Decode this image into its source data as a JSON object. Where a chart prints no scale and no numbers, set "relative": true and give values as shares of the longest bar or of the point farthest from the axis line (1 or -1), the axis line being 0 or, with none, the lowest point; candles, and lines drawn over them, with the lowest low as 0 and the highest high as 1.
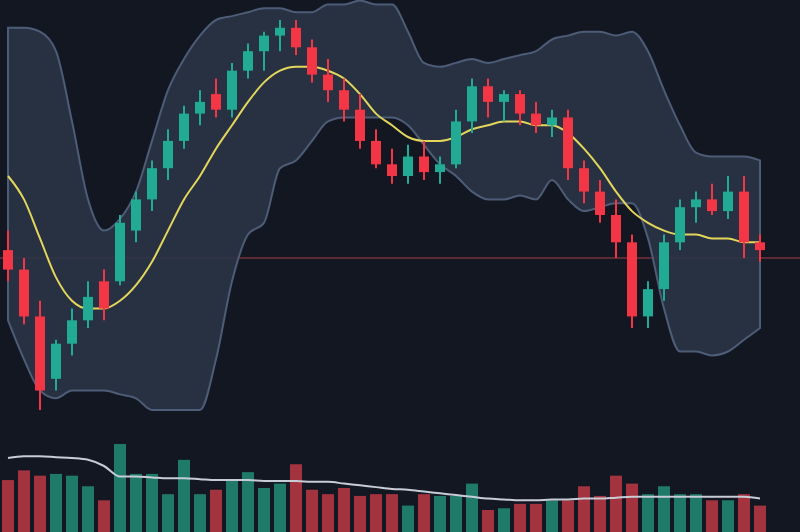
{
  "chart_data": [
    {
      "type": "candlestick",
      "relative": true,
      "categories": [
        null,
        null,
        null,
        null,
        null,
        null,
        null,
        null,
        null,
        null,
        null,
        null,
        null,
        null,
        null,
        null,
        null,
        null,
        null,
        null,
        null,
        null,
        null,
        null,
        null,
        null,
        null,
        null,
        null,
        null,
        null,
        null,
        null,
        null,
        null,
        null,
        null,
        null,
        null,
        null,
        null,
        null,
        null,
        null,
        null,
        null,
        null,
        null
      ],
      "ohlc": [
        [
          0.41,
          0.46,
          0.33,
          0.36
        ],
        [
          0.36,
          0.39,
          0.22,
          0.24
        ],
        [
          0.24,
          0.28,
          0,
          0.05
        ],
        [
          0.08,
          0.18,
          0.05,
          0.17
        ],
        [
          0.17,
          0.26,
          0.14,
          0.23
        ],
        [
          0.23,
          0.33,
          0.21,
          0.29
        ],
        [
          0.33,
          0.36,
          0.23,
          0.26
        ],
        [
          0.33,
          0.5,
          0.32,
          0.48
        ],
        [
          0.46,
          0.56,
          0.43,
          0.54
        ],
        [
          0.54,
          0.64,
          0.51,
          0.62
        ],
        [
          0.62,
          0.72,
          0.59,
          0.69
        ],
        [
          0.69,
          0.78,
          0.67,
          0.76
        ],
        [
          0.76,
          0.82,
          0.73,
          0.79
        ],
        [
          0.81,
          0.85,
          0.75,
          0.77
        ],
        [
          0.77,
          0.89,
          0.75,
          0.87
        ],
        [
          0.87,
          0.94,
          0.85,
          0.92
        ],
        [
          0.92,
          0.97,
          0.87,
          0.96
        ],
        [
          0.96,
          1,
          0.92,
          0.98
        ],
        [
          0.98,
          1,
          0.91,
          0.93
        ],
        [
          0.93,
          0.95,
          0.84,
          0.86
        ],
        [
          0.86,
          0.9,
          0.79,
          0.82
        ],
        [
          0.82,
          0.85,
          0.74,
          0.77
        ],
        [
          0.77,
          0.81,
          0.67,
          0.69
        ],
        [
          0.69,
          0.72,
          0.62,
          0.63
        ],
        [
          0.63,
          0.67,
          0.58,
          0.6
        ],
        [
          0.6,
          0.68,
          0.58,
          0.65
        ],
        [
          0.65,
          0.69,
          0.59,
          0.61
        ],
        [
          0.61,
          0.65,
          0.58,
          0.63
        ],
        [
          0.63,
          0.77,
          0.62,
          0.74
        ],
        [
          0.74,
          0.85,
          0.71,
          0.83
        ],
        [
          0.83,
          0.85,
          0.75,
          0.79
        ],
        [
          0.79,
          0.82,
          0.74,
          0.81
        ],
        [
          0.81,
          0.82,
          0.73,
          0.76
        ],
        [
          0.76,
          0.79,
          0.71,
          0.73
        ],
        [
          0.73,
          0.77,
          0.7,
          0.75
        ],
        [
          0.75,
          0.77,
          0.59,
          0.62
        ],
        [
          0.62,
          0.64,
          0.53,
          0.56
        ],
        [
          0.56,
          0.59,
          0.48,
          0.5
        ],
        [
          0.5,
          0.54,
          0.39,
          0.43
        ],
        [
          0.43,
          0.45,
          0.21,
          0.24
        ],
        [
          0.24,
          0.33,
          0.21,
          0.31
        ],
        [
          0.31,
          0.45,
          0.28,
          0.43
        ],
        [
          0.43,
          0.54,
          0.41,
          0.52
        ],
        [
          0.52,
          0.56,
          0.48,
          0.54
        ],
        [
          0.54,
          0.58,
          0.5,
          0.51
        ],
        [
          0.51,
          0.6,
          0.49,
          0.56
        ],
        [
          0.56,
          0.6,
          0.39,
          0.43
        ],
        [
          0.43,
          0.45,
          0.38,
          0.41
        ]
      ],
      "colors": [
        "#f23645",
        "#f23645",
        "#f23645",
        "#22ab94",
        "#22ab94",
        "#22ab94",
        "#f23645",
        "#22ab94",
        "#22ab94",
        "#22ab94",
        "#22ab94",
        "#22ab94",
        "#22ab94",
        "#f23645",
        "#22ab94",
        "#22ab94",
        "#22ab94",
        "#22ab94",
        "#f23645",
        "#f23645",
        "#f23645",
        "#f23645",
        "#f23645",
        "#f23645",
        "#f23645",
        "#22ab94",
        "#f23645",
        "#22ab94",
        "#22ab94",
        "#22ab94",
        "#f23645",
        "#22ab94",
        "#f23645",
        "#f23645",
        "#22ab94",
        "#f23645",
        "#f23645",
        "#f23645",
        "#f23645",
        "#f23645",
        "#22ab94",
        "#22ab94",
        "#22ab94",
        "#22ab94",
        "#f23645",
        "#22ab94",
        "#f23645",
        "#f23645"
      ],
      "series": [
        {
          "type": "line",
          "color": "#e3d65c",
          "values": [
            0.6,
            0.54,
            0.44,
            0.34,
            0.28,
            0.26,
            0.26,
            0.28,
            0.32,
            0.38,
            0.46,
            0.54,
            0.6,
            0.67,
            0.73,
            0.79,
            0.84,
            0.87,
            0.88,
            0.88,
            0.87,
            0.85,
            0.81,
            0.76,
            0.73,
            0.7,
            0.69,
            0.69,
            0.7,
            0.72,
            0.73,
            0.74,
            0.74,
            0.73,
            0.73,
            0.71,
            0.67,
            0.62,
            0.56,
            0.51,
            0.48,
            0.46,
            0.45,
            0.45,
            0.44,
            0.44,
            0.43,
            0.43
          ],
          "upper": [
            0.98,
            0.98,
            0.97,
            0.92,
            0.74,
            0.54,
            0.46,
            0.49,
            0.56,
            0.69,
            0.82,
            0.9,
            0.96,
            1,
            1.01,
            1.02,
            1.03,
            1.03,
            1.02,
            1.02,
            1.04,
            1.04,
            1.05,
            1.04,
            1.04,
            0.97,
            0.89,
            0.88,
            0.89,
            0.9,
            0.89,
            0.9,
            0.91,
            0.92,
            0.95,
            0.96,
            0.97,
            0.97,
            0.96,
            0.97,
            0.92,
            0.82,
            0.73,
            0.66,
            0.65,
            0.65,
            0.65,
            0.64
          ],
          "lower": [
            0.23,
            0.13,
            0.05,
            0.03,
            0.05,
            0.05,
            0.05,
            0.04,
            0.03,
            0,
            0,
            0,
            0,
            0.13,
            0.33,
            0.45,
            0.48,
            0.62,
            0.64,
            0.69,
            0.74,
            0.75,
            0.75,
            0.75,
            0.75,
            0.73,
            0.68,
            0.63,
            0.6,
            0.56,
            0.54,
            0.54,
            0.55,
            0.54,
            0.59,
            0.54,
            0.51,
            0.52,
            0.53,
            0.53,
            0.44,
            0.26,
            0.15,
            0.15,
            0.14,
            0.15,
            0.18,
            0.21
          ]
        }
      ],
      "ref_lines": [
        {
          "axis": "y",
          "value": 0.39,
          "color": "#5c2a35"
        }
      ]
    },
    {
      "type": "bar",
      "relative": true,
      "categories": [
        null,
        null,
        null,
        null,
        null,
        null,
        null,
        null,
        null,
        null,
        null,
        null,
        null,
        null,
        null,
        null,
        null,
        null,
        null,
        null,
        null,
        null,
        null,
        null,
        null,
        null,
        null,
        null,
        null,
        null,
        null,
        null,
        null,
        null,
        null,
        null,
        null,
        null,
        null,
        null,
        null,
        null,
        null,
        null,
        null,
        null,
        null,
        null
      ],
      "series": [
        {
          "type": "bar",
          "values": [
            0.59,
            0.7,
            0.64,
            0.66,
            0.64,
            0.52,
            0.36,
            1,
            0.66,
            0.66,
            0.43,
            0.82,
            0.43,
            0.48,
            0.59,
            0.68,
            0.5,
            0.55,
            0.77,
            0.48,
            0.43,
            0.5,
            0.41,
            0.43,
            0.43,
            0.3,
            0.43,
            0.41,
            0.41,
            0.55,
            0.25,
            0.27,
            0.32,
            0.32,
            0.36,
            0.36,
            0.52,
            0.41,
            0.64,
            0.55,
            0.43,
            0.52,
            0.43,
            0.43,
            0.36,
            0.36,
            0.43,
            0.3
          ],
          "colors": [
            "#a3343f",
            "#a3343f",
            "#a3343f",
            "#1f7a6a",
            "#1f7a6a",
            "#1f7a6a",
            "#a3343f",
            "#1f7a6a",
            "#1f7a6a",
            "#1f7a6a",
            "#1f7a6a",
            "#1f7a6a",
            "#1f7a6a",
            "#a3343f",
            "#1f7a6a",
            "#1f7a6a",
            "#1f7a6a",
            "#1f7a6a",
            "#a3343f",
            "#a3343f",
            "#a3343f",
            "#a3343f",
            "#a3343f",
            "#a3343f",
            "#a3343f",
            "#1f7a6a",
            "#a3343f",
            "#1f7a6a",
            "#1f7a6a",
            "#1f7a6a",
            "#a3343f",
            "#1f7a6a",
            "#a3343f",
            "#a3343f",
            "#1f7a6a",
            "#a3343f",
            "#a3343f",
            "#a3343f",
            "#a3343f",
            "#a3343f",
            "#1f7a6a",
            "#1f7a6a",
            "#1f7a6a",
            "#1f7a6a",
            "#a3343f",
            "#1f7a6a",
            "#a3343f",
            "#a3343f"
          ]
        },
        {
          "type": "line",
          "color": "#c8ccd6",
          "values": [
            0.84,
            0.86,
            0.86,
            0.85,
            0.84,
            0.82,
            0.75,
            0.63,
            0.63,
            0.62,
            0.61,
            0.61,
            0.6,
            0.59,
            0.59,
            0.59,
            0.58,
            0.58,
            0.58,
            0.57,
            0.57,
            0.55,
            0.53,
            0.51,
            0.49,
            0.48,
            0.46,
            0.44,
            0.42,
            0.4,
            0.38,
            0.37,
            0.36,
            0.36,
            0.37,
            0.37,
            0.38,
            0.38,
            0.39,
            0.4,
            0.4,
            0.4,
            0.4,
            0.4,
            0.4,
            0.4,
            0.4,
            0.38
          ]
        }
      ]
    }
  ]
}
